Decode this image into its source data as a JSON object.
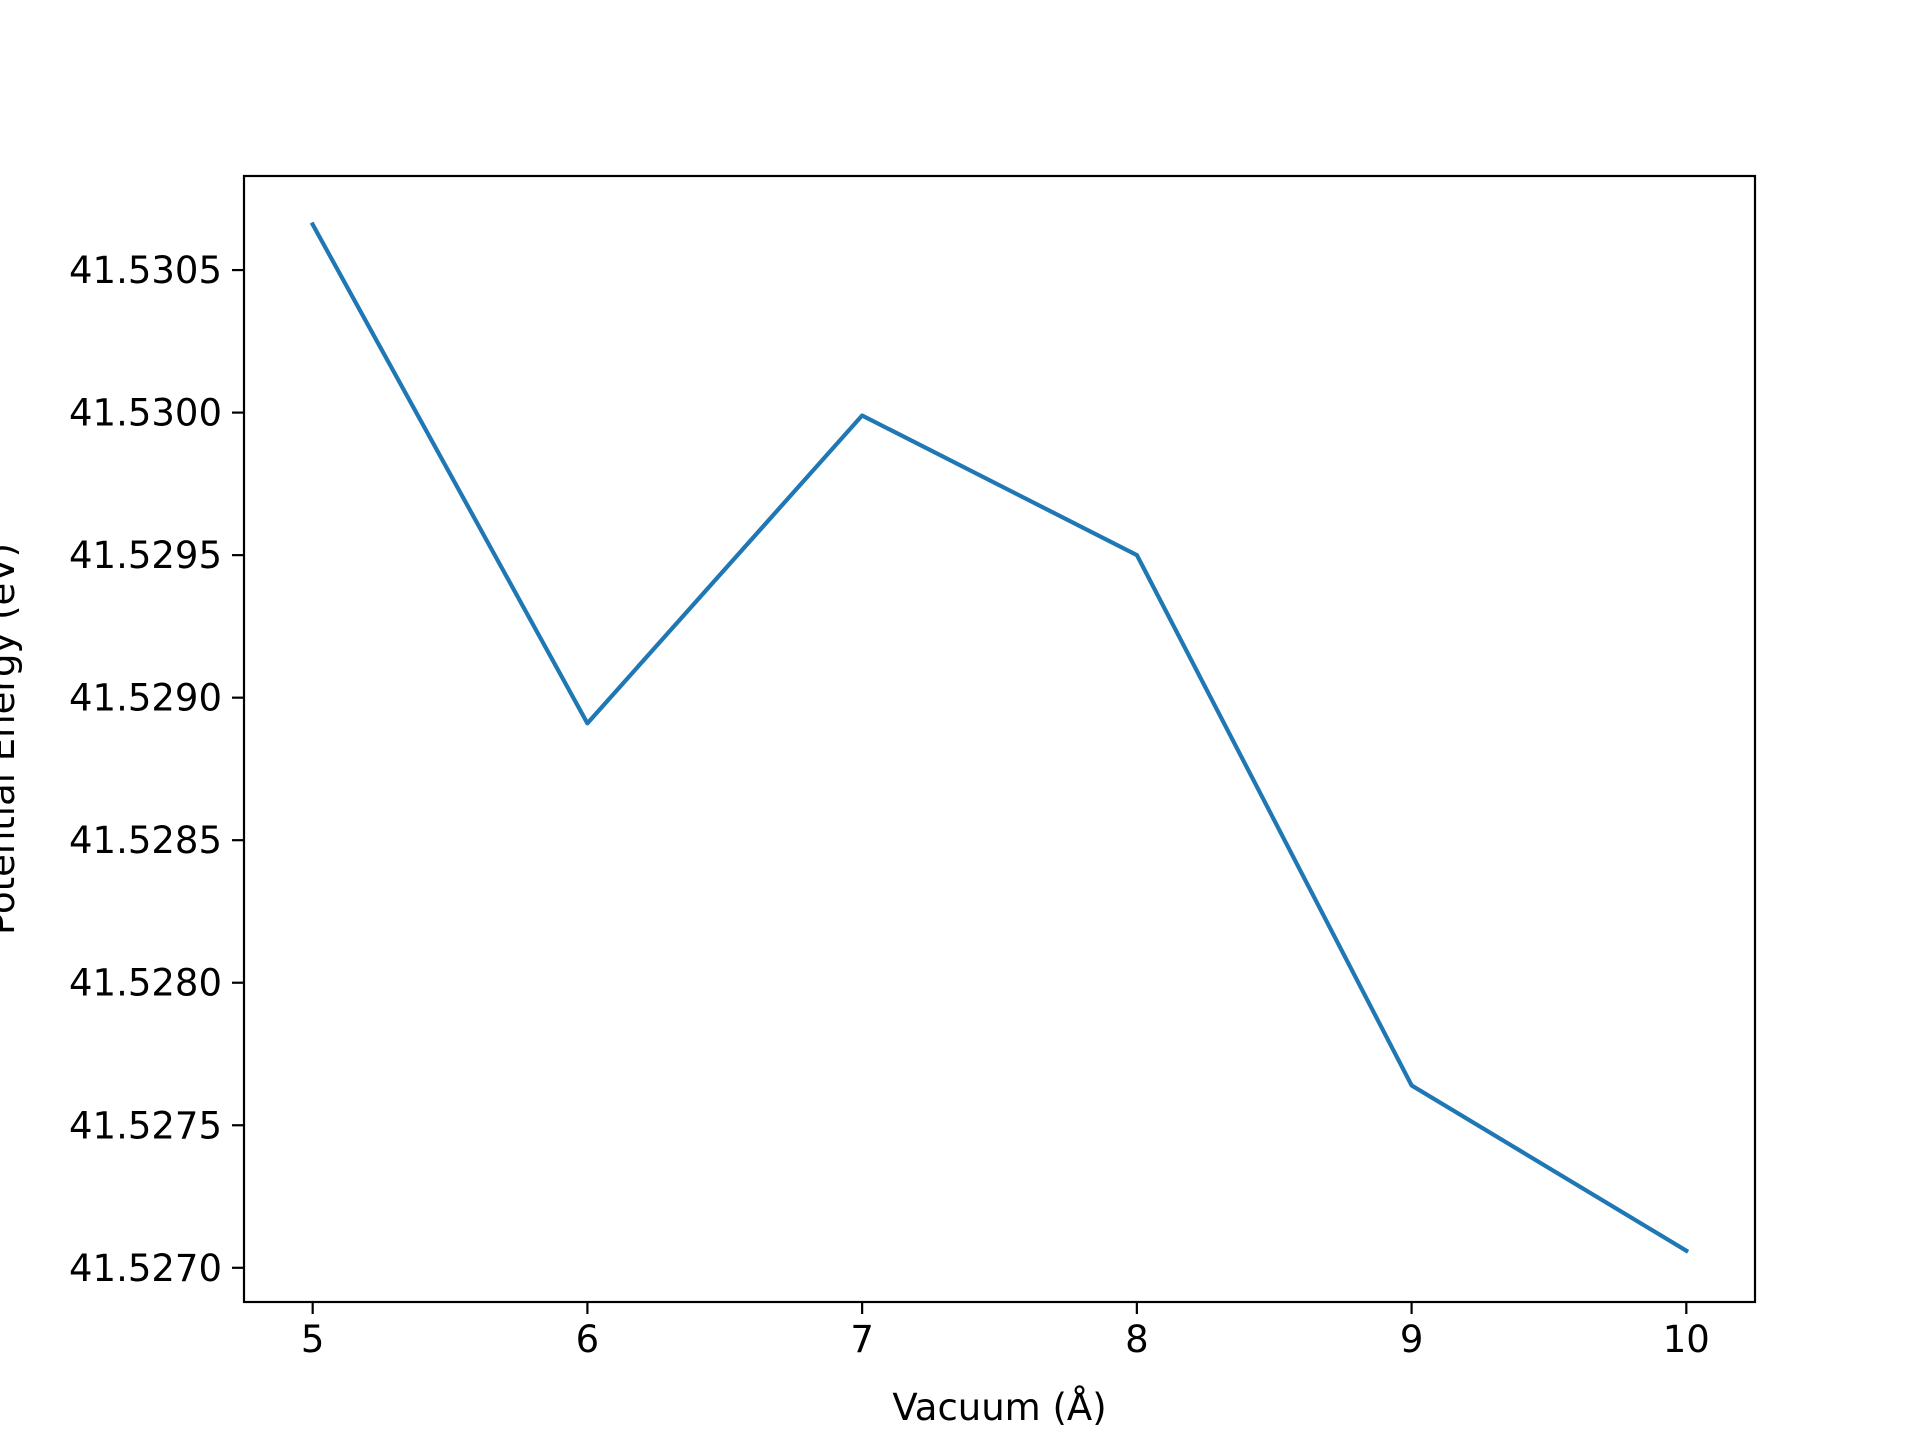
{
  "chart_data": {
    "type": "line",
    "title": "",
    "xlabel": "Vacuum (Å)",
    "ylabel": "Potential Energy (eV)",
    "x": [
      5,
      6,
      7,
      8,
      9,
      10
    ],
    "series": [
      {
        "values": [
          41.53066,
          41.52891,
          41.52999,
          41.5295,
          41.52764,
          41.52706
        ],
        "color": "#1f77b4"
      }
    ],
    "xlim": [
      4.75,
      10.25
    ],
    "ylim": [
      41.52688,
      41.53083
    ],
    "xticks": [
      5,
      6,
      7,
      8,
      9,
      10
    ],
    "xtick_labels": [
      "5",
      "6",
      "7",
      "8",
      "9",
      "10"
    ],
    "yticks": [
      41.527,
      41.5275,
      41.528,
      41.5285,
      41.529,
      41.5295,
      41.53,
      41.5305
    ],
    "ytick_labels": [
      "41.5270",
      "41.5275",
      "41.5280",
      "41.5285",
      "41.5290",
      "41.5295",
      "41.5300",
      "41.5305"
    ],
    "grid": false,
    "legend": "none"
  }
}
